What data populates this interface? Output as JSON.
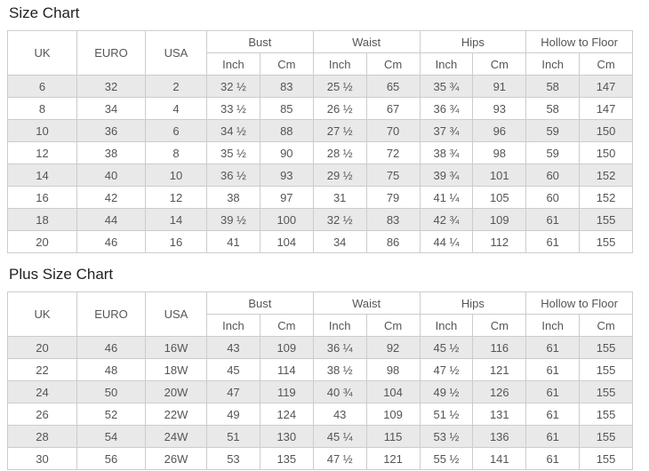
{
  "colors": {
    "background": "#ffffff",
    "table_border": "#cccccc",
    "row_stripe": "#e9e9e9",
    "row_plain": "#ffffff",
    "cell_text": "#555555",
    "title_text": "#222222"
  },
  "chart_data": [
    {
      "type": "table",
      "title": "Size Chart",
      "size_columns": [
        "UK",
        "EURO",
        "USA"
      ],
      "measure_groups": [
        {
          "label": "Bust",
          "sub": [
            "Inch",
            "Cm"
          ]
        },
        {
          "label": "Waist",
          "sub": [
            "Inch",
            "Cm"
          ]
        },
        {
          "label": "Hips",
          "sub": [
            "Inch",
            "Cm"
          ]
        },
        {
          "label": "Hollow to Floor",
          "sub": [
            "Inch",
            "Cm"
          ]
        }
      ],
      "columns_flat": [
        "UK",
        "EURO",
        "USA",
        "Bust Inch",
        "Bust Cm",
        "Waist Inch",
        "Waist Cm",
        "Hips Inch",
        "Hips Cm",
        "Hollow to Floor Inch",
        "Hollow to Floor Cm"
      ],
      "rows": [
        [
          "6",
          "32",
          "2",
          "32 ½",
          "83",
          "25 ½",
          "65",
          "35 ¾",
          "91",
          "58",
          "147"
        ],
        [
          "8",
          "34",
          "4",
          "33 ½",
          "85",
          "26 ½",
          "67",
          "36 ¾",
          "93",
          "58",
          "147"
        ],
        [
          "10",
          "36",
          "6",
          "34 ½",
          "88",
          "27 ½",
          "70",
          "37 ¾",
          "96",
          "59",
          "150"
        ],
        [
          "12",
          "38",
          "8",
          "35 ½",
          "90",
          "28 ½",
          "72",
          "38 ¾",
          "98",
          "59",
          "150"
        ],
        [
          "14",
          "40",
          "10",
          "36 ½",
          "93",
          "29 ½",
          "75",
          "39 ¾",
          "101",
          "60",
          "152"
        ],
        [
          "16",
          "42",
          "12",
          "38",
          "97",
          "31",
          "79",
          "41 ¼",
          "105",
          "60",
          "152"
        ],
        [
          "18",
          "44",
          "14",
          "39 ½",
          "100",
          "32 ½",
          "83",
          "42 ¾",
          "109",
          "61",
          "155"
        ],
        [
          "20",
          "46",
          "16",
          "41",
          "104",
          "34",
          "86",
          "44 ¼",
          "112",
          "61",
          "155"
        ]
      ]
    },
    {
      "type": "table",
      "title": "Plus Size Chart",
      "size_columns": [
        "UK",
        "EURO",
        "USA"
      ],
      "measure_groups": [
        {
          "label": "Bust",
          "sub": [
            "Inch",
            "Cm"
          ]
        },
        {
          "label": "Waist",
          "sub": [
            "Inch",
            "Cm"
          ]
        },
        {
          "label": "Hips",
          "sub": [
            "Inch",
            "Cm"
          ]
        },
        {
          "label": "Hollow to Floor",
          "sub": [
            "Inch",
            "Cm"
          ]
        }
      ],
      "columns_flat": [
        "UK",
        "EURO",
        "USA",
        "Bust Inch",
        "Bust Cm",
        "Waist Inch",
        "Waist Cm",
        "Hips Inch",
        "Hips Cm",
        "Hollow to Floor Inch",
        "Hollow to Floor Cm"
      ],
      "rows": [
        [
          "20",
          "46",
          "16W",
          "43",
          "109",
          "36 ¼",
          "92",
          "45 ½",
          "116",
          "61",
          "155"
        ],
        [
          "22",
          "48",
          "18W",
          "45",
          "114",
          "38 ½",
          "98",
          "47 ½",
          "121",
          "61",
          "155"
        ],
        [
          "24",
          "50",
          "20W",
          "47",
          "119",
          "40 ¾",
          "104",
          "49 ½",
          "126",
          "61",
          "155"
        ],
        [
          "26",
          "52",
          "22W",
          "49",
          "124",
          "43",
          "109",
          "51 ½",
          "131",
          "61",
          "155"
        ],
        [
          "28",
          "54",
          "24W",
          "51",
          "130",
          "45 ¼",
          "115",
          "53 ½",
          "136",
          "61",
          "155"
        ],
        [
          "30",
          "56",
          "26W",
          "53",
          "135",
          "47 ½",
          "121",
          "55 ½",
          "141",
          "61",
          "155"
        ]
      ]
    }
  ]
}
